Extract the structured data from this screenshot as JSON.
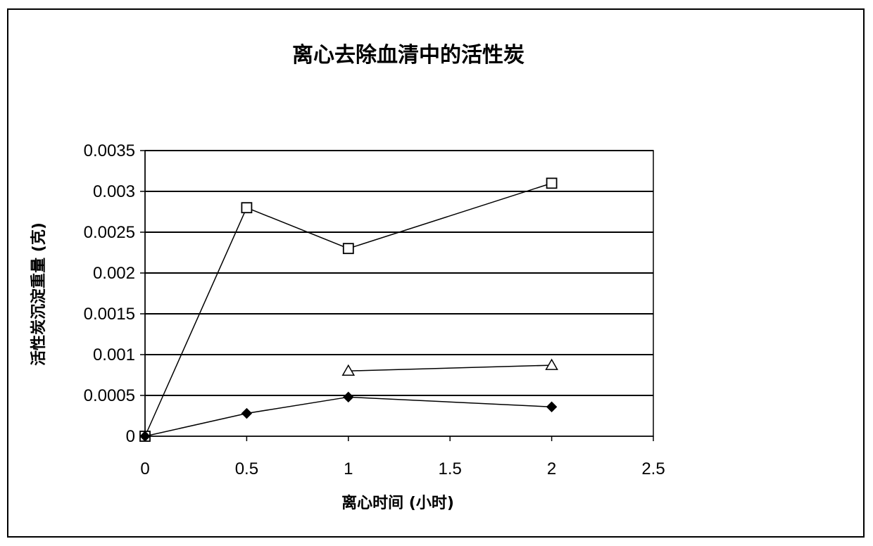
{
  "chart_data": {
    "type": "line",
    "title": "离心去除血清中的活性炭",
    "xlabel": "离心时间 (小时)",
    "ylabel": "活性炭沉淀重量 (克)",
    "xlim": [
      0,
      2.5
    ],
    "ylim": [
      0,
      0.0035
    ],
    "xticks": [
      "0",
      "0.5",
      "1",
      "1.5",
      "2",
      "2.5"
    ],
    "yticks": [
      "0",
      "0.0005",
      "0.001",
      "0.0015",
      "0.002",
      "0.0025",
      "0.003",
      "0.0035"
    ],
    "grid": "horizontal",
    "legend": "none",
    "series": [
      {
        "marker": "square",
        "x": [
          0,
          0.5,
          1,
          2
        ],
        "values": [
          0,
          0.0028,
          0.0023,
          0.0031
        ]
      },
      {
        "marker": "triangle",
        "x": [
          1,
          2
        ],
        "values": [
          0.0008,
          0.00087
        ]
      },
      {
        "marker": "diamond",
        "x": [
          0,
          0.5,
          1,
          2
        ],
        "values": [
          0,
          0.00028,
          0.00048,
          0.00036
        ]
      }
    ]
  }
}
